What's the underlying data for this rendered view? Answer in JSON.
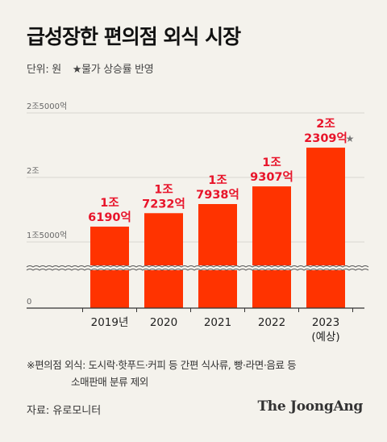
{
  "title": "급성장한 편의점 외식 시장",
  "unit_label": "단위: 원",
  "note": "★물가 상승률 반영",
  "footnote_line1": "※편의점 외식: 도시락·핫푸드·커피 등 간편 식사류, 빵·라면·음료 등",
  "footnote_line2": "소매판매 분류 제외",
  "source": "자료: 유로모니터",
  "brand": "The JoongAng",
  "colors": {
    "bar": "#ff3300",
    "label": "#e8142a",
    "axis": "#333333",
    "grid": "#d8d6d0"
  },
  "chart_data": {
    "type": "bar",
    "categories": [
      "2019년",
      "2020",
      "2021",
      "2022",
      "2023\n(예상)"
    ],
    "values": [
      16190,
      17232,
      17938,
      19307,
      22309
    ],
    "value_unit": "억 원",
    "data_labels": [
      [
        "1조",
        "6190억"
      ],
      [
        "1조",
        "7232억"
      ],
      [
        "1조",
        "7938억"
      ],
      [
        "1조",
        "9307억"
      ],
      [
        "2조",
        "2309억"
      ]
    ],
    "starred_index": 4,
    "star_symbol": "★",
    "y_ticks": [
      {
        "value": 0,
        "label": "0"
      },
      {
        "value": 15000,
        "label": "1조5000억"
      },
      {
        "value": 20000,
        "label": "2조"
      },
      {
        "value": 25000,
        "label": "2조5000억"
      }
    ],
    "axis_break": true,
    "grid": true
  }
}
